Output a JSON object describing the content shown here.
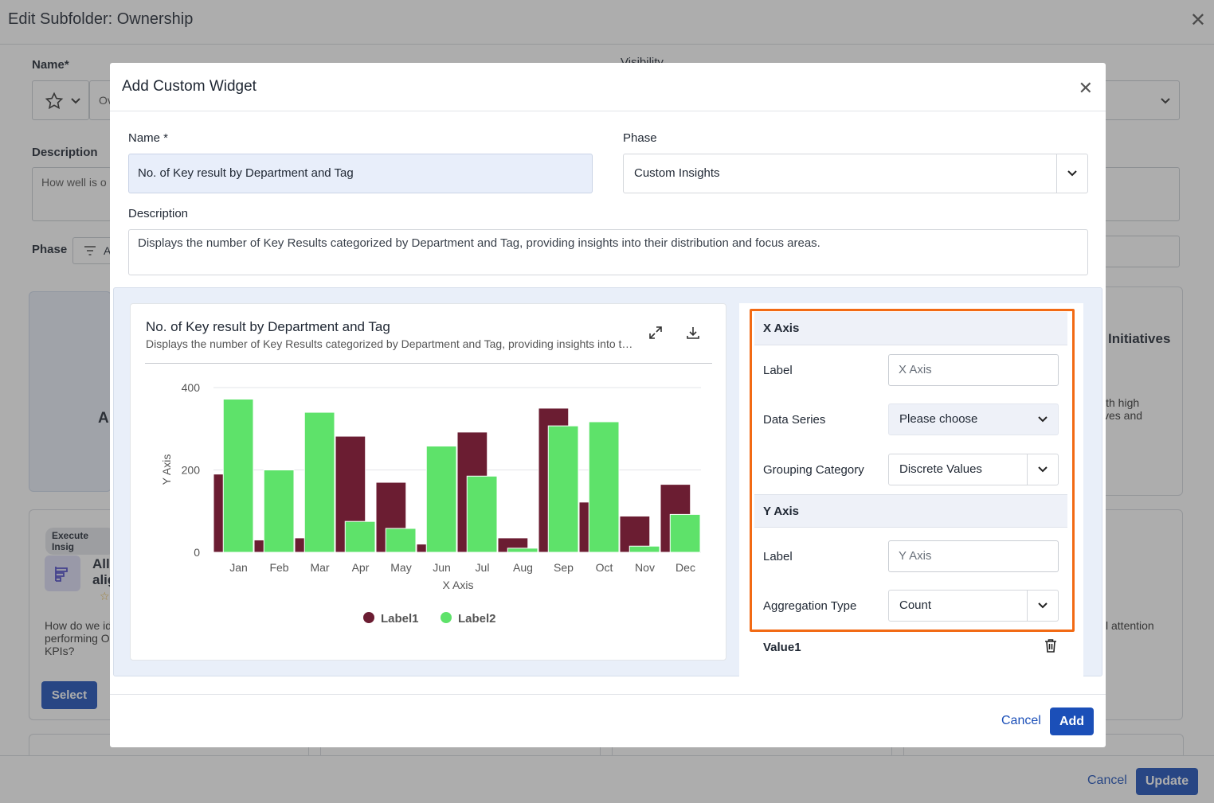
{
  "page": {
    "title": "Edit Subfolder: Ownership",
    "name_label": "Name*",
    "visibility_label": "Visibility",
    "name_value_partial": "Ov",
    "description_label": "Description",
    "description_value_partial": "How well is o",
    "phase_label": "Phase",
    "phase_value_partial": "A",
    "card_title_partial": "Initiatives",
    "card_text_partial": "ith high\nves and",
    "card_letter_partial": "A",
    "execute_badge": "Execute Insig",
    "item_title_partial": "All\nalig",
    "item_question_partial": "How do we id\nperforming O\nKPIs?",
    "attention_partial": "l attention",
    "select_label": "Select",
    "cancel_label": "Cancel",
    "update_label": "Update"
  },
  "modal": {
    "title": "Add Custom Widget",
    "name_label": "Name *",
    "name_value": "No. of Key result by Department and Tag",
    "phase_label": "Phase",
    "phase_value": "Custom Insights",
    "description_label": "Description",
    "description_value": "Displays the number of Key Results categorized by Department and Tag, providing insights into their distribution and focus areas.",
    "cancel_label": "Cancel",
    "add_label": "Add"
  },
  "config": {
    "x_axis_header": "X Axis",
    "x_label_label": "Label",
    "x_label_placeholder": "X Axis",
    "data_series_label": "Data Series",
    "data_series_value": "Please choose",
    "grouping_label": "Grouping Category",
    "grouping_value": "Discrete Values",
    "y_axis_header": "Y Axis",
    "y_label_label": "Label",
    "y_label_placeholder": "Y Axis",
    "aggregation_label": "Aggregation Type",
    "aggregation_value": "Count",
    "value1_label": "Value1"
  },
  "chart_data": {
    "type": "bar",
    "title": "No. of Key result by Department and Tag",
    "subtitle": "Displays the number of Key Results categorized by Department and Tag, providing insights into th...",
    "xlabel": "X Axis",
    "ylabel": "Y Axis",
    "ylim": [
      0,
      400
    ],
    "yticks": [
      0,
      200,
      400
    ],
    "grid": true,
    "legend_position": "bottom",
    "categories": [
      "Jan",
      "Feb",
      "Mar",
      "Apr",
      "May",
      "Jun",
      "Jul",
      "Aug",
      "Sep",
      "Oct",
      "Nov",
      "Dec"
    ],
    "series": [
      {
        "name": "Label1",
        "color": "#6b1d32",
        "values": [
          190,
          30,
          35,
          282,
          170,
          20,
          292,
          35,
          350,
          122,
          88,
          165
        ]
      },
      {
        "name": "Label2",
        "color": "#5ee26a",
        "values": [
          372,
          200,
          340,
          75,
          58,
          258,
          185,
          10,
          307,
          317,
          15,
          92
        ]
      }
    ]
  }
}
